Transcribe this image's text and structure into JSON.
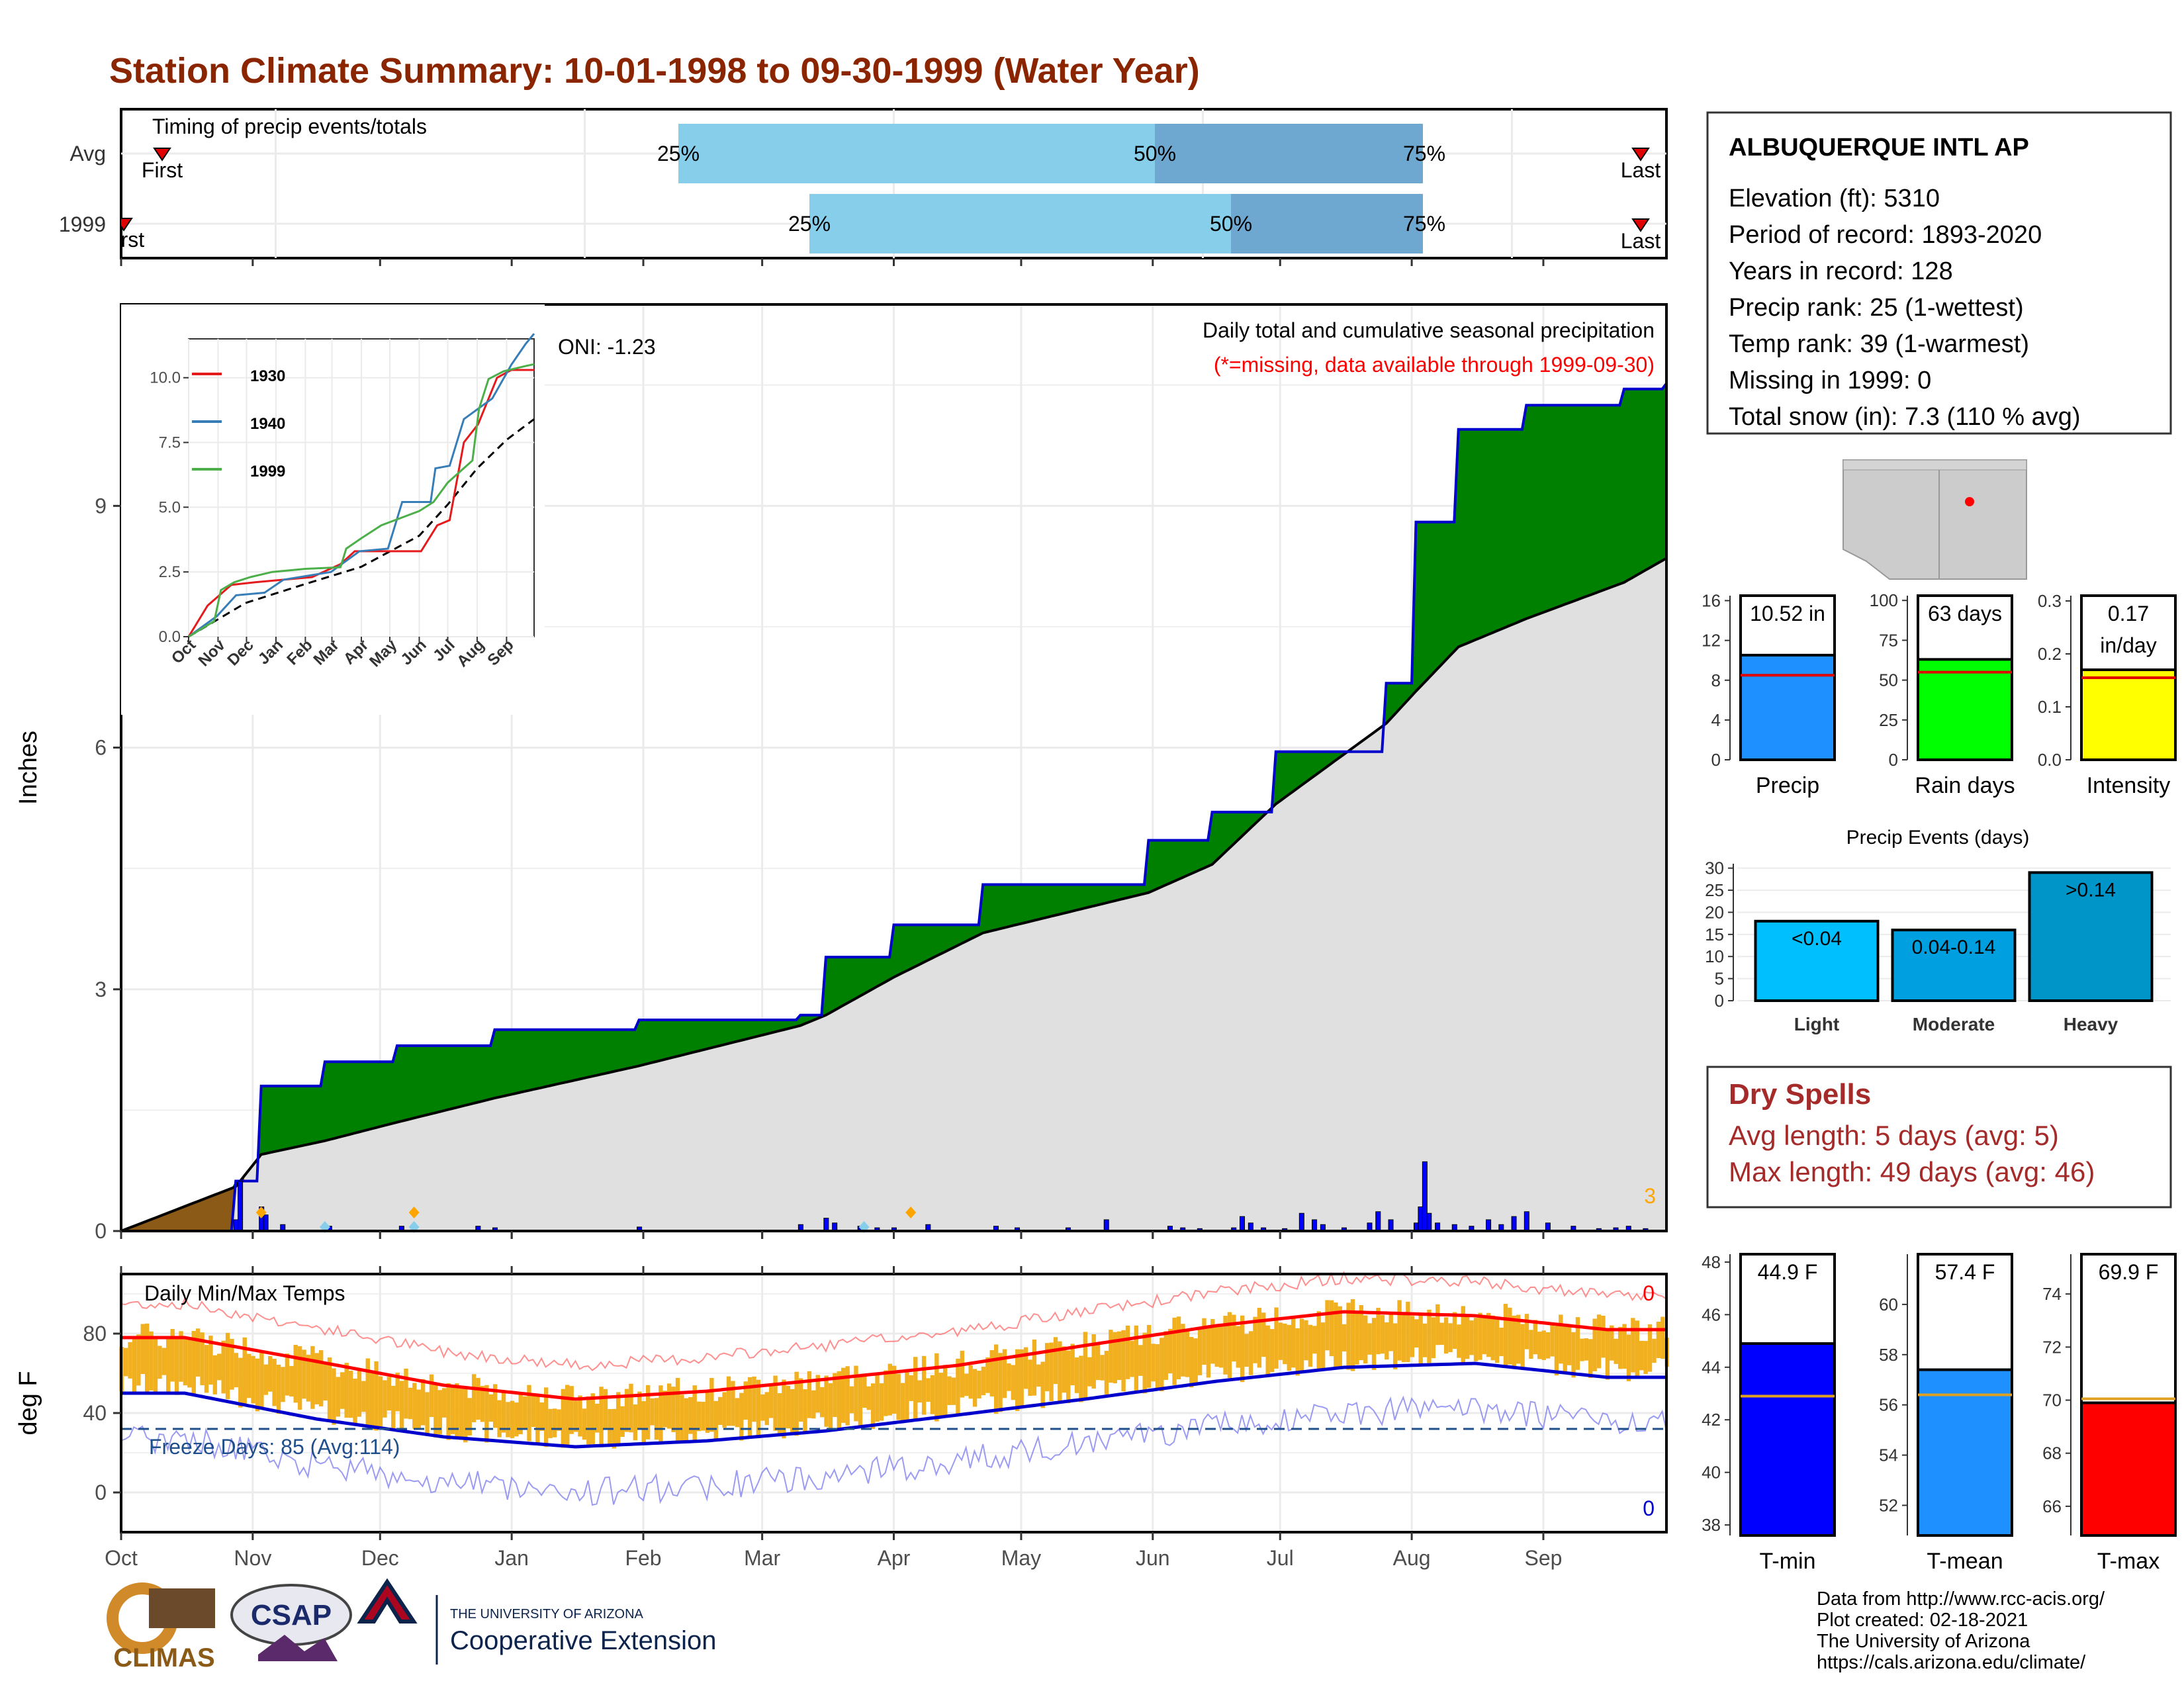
{
  "title": "Station Climate Summary: 10-01-1998 to 09-30-1999 (Water Year)",
  "colors": {
    "title": "#8b2500",
    "cum_precip_fill": "#008000",
    "cum_precip_line": "#0000cc",
    "avg_cum_fill": "#e0e0e0",
    "daily_precip": "#0000ff",
    "temp_bar": "#f0b020",
    "avg_max": "#ff0000",
    "avg_min": "#0000cc",
    "freeze_line": "#1f4e8c",
    "dry_spell_text": "#a52a2a",
    "precip_bar": "#1e90ff",
    "rain_days_bar": "#00ff00",
    "intensity_bar": "#ffff00",
    "event_light": "#00bfff",
    "event_moderate": "#00a0e0",
    "event_heavy": "#0095c8",
    "tmin_bar": "#0000ff",
    "tmean_bar": "#1e90ff",
    "tmax_bar": "#ff0000"
  },
  "timing": {
    "title": "Timing of precip events/totals",
    "rows": [
      "Avg",
      "1999"
    ],
    "avg": {
      "first_label": "First",
      "last_label": "Last",
      "p25": "25%",
      "p50": "50%",
      "p75": "75%"
    },
    "y1999": {
      "first_label": "First",
      "last_label": "Last",
      "p25": "25%",
      "p50": "50%",
      "p75": "75%"
    }
  },
  "precip_panel": {
    "ylabel": "Inches",
    "header": "Daily total and cumulative seasonal precipitation",
    "missing_note": "(*=missing, data available through 1999-09-30)",
    "oni": "ONI: -1.23",
    "corner_count": "3",
    "y_ticks": [
      "0",
      "3",
      "6",
      "9"
    ]
  },
  "inset": {
    "y_ticks": [
      "0.0",
      "2.5",
      "5.0",
      "7.5",
      "10.0"
    ],
    "x_ticks": [
      "Oct",
      "Nov",
      "Dec",
      "Jan",
      "Feb",
      "Mar",
      "Apr",
      "May",
      "Jun",
      "Jul",
      "Aug",
      "Sep"
    ],
    "legend": [
      "1930",
      "1940",
      "1999"
    ]
  },
  "temp_panel": {
    "ylabel": "deg F",
    "title": "Daily Min/Max Temps",
    "freeze": "Freeze Days: 85 (Avg:114)",
    "count_top": "0",
    "count_bottom": "0",
    "y_ticks": [
      "0",
      "40",
      "80"
    ]
  },
  "x_months": [
    "Oct",
    "Nov",
    "Dec",
    "Jan",
    "Feb",
    "Mar",
    "Apr",
    "May",
    "Jun",
    "Jul",
    "Aug",
    "Sep"
  ],
  "station": {
    "name": "ALBUQUERQUE INTL AP",
    "lines": [
      "Elevation (ft): 5310",
      "Period of record: 1893-2020",
      "Years in record: 128",
      "Precip rank: 25 (1-wettest)",
      "Temp rank: 39 (1-warmest)",
      "Missing in 1999: 0",
      "Total snow (in): 7.3 (110 % avg)"
    ]
  },
  "mini_precip": {
    "precip": {
      "label": "10.52 in",
      "axis": "Precip",
      "ticks": [
        "0",
        "4",
        "8",
        "12",
        "16"
      ]
    },
    "rain_days": {
      "label": "63 days",
      "axis": "Rain days",
      "ticks": [
        "0",
        "25",
        "50",
        "75",
        "100"
      ]
    },
    "intensity": {
      "label1": "0.17",
      "label2": "in/day",
      "axis": "Intensity",
      "ticks": [
        "0.0",
        "0.1",
        "0.2",
        "0.3"
      ]
    }
  },
  "precip_events": {
    "title": "Precip Events (days)",
    "ticks": [
      "0",
      "5",
      "10",
      "15",
      "20",
      "25",
      "30"
    ],
    "bars": [
      {
        "label": "<0.04",
        "axis": "Light"
      },
      {
        "label": "0.04-0.14",
        "axis": "Moderate"
      },
      {
        "label": ">0.14",
        "axis": "Heavy"
      }
    ]
  },
  "dry_spells": {
    "title": "Dry Spells",
    "avg": "Avg length: 5 days (avg: 5)",
    "max": "Max length: 49 days (avg: 46)"
  },
  "temp_mini": {
    "tmin": {
      "label": "44.9 F",
      "axis": "T-min",
      "ticks": [
        "38",
        "40",
        "42",
        "44",
        "46",
        "48"
      ]
    },
    "tmean": {
      "label": "57.4 F",
      "axis": "T-mean",
      "ticks": [
        "52",
        "54",
        "56",
        "58",
        "60"
      ]
    },
    "tmax": {
      "label": "69.9 F",
      "axis": "T-max",
      "ticks": [
        "66",
        "68",
        "70",
        "72",
        "74"
      ]
    }
  },
  "footer": {
    "lines": [
      "Data from http://www.rcc-acis.org/",
      "Plot created: 02-18-2021",
      "The University of Arizona",
      "https://cals.arizona.edu/climate/"
    ],
    "climas": "CLIMAS",
    "csap": "CSAP",
    "ua_small": "THE UNIVERSITY OF ARIZONA",
    "ua_big": "Cooperative Extension"
  },
  "chart_data": [
    {
      "type": "area",
      "title": "Daily total and cumulative seasonal precipitation",
      "ylabel": "Inches",
      "ylim": [
        0,
        11.5
      ],
      "x": [
        "1998-10-01",
        "1998-10-28",
        "1998-11-03",
        "1998-11-18",
        "1998-12-05",
        "1998-12-28",
        "1999-01-31",
        "1999-03-10",
        "1999-03-16",
        "1999-04-01",
        "1999-04-22",
        "1999-05-31",
        "1999-06-15",
        "1999-06-30",
        "1999-07-26",
        "1999-08-02",
        "1999-08-12",
        "1999-08-28",
        "1999-09-20",
        "1999-09-30"
      ],
      "series": [
        {
          "name": "1999",
          "values": [
            0.0,
            0.62,
            1.8,
            2.1,
            2.3,
            2.5,
            2.62,
            2.68,
            3.4,
            3.8,
            4.3,
            4.85,
            5.2,
            5.95,
            6.8,
            8.8,
            9.95,
            10.25,
            10.45,
            10.52
          ]
        },
        {
          "name": "Avg",
          "values": [
            0.0,
            0.55,
            0.95,
            1.12,
            1.35,
            1.65,
            2.05,
            2.55,
            2.68,
            3.15,
            3.7,
            4.2,
            4.55,
            5.3,
            6.3,
            6.7,
            7.25,
            7.6,
            8.05,
            8.35
          ]
        }
      ]
    },
    {
      "type": "line",
      "title": "Daily Min/Max Temps",
      "ylabel": "deg F",
      "ylim": [
        -20,
        110
      ],
      "x": [
        "Oct",
        "Nov",
        "Dec",
        "Jan",
        "Feb",
        "Mar",
        "Apr",
        "May",
        "Jun",
        "Jul",
        "Aug",
        "Sep"
      ],
      "series": [
        {
          "name": "Avg max",
          "values": [
            78,
            66,
            54,
            47,
            51,
            57,
            64,
            74,
            84,
            91,
            89,
            82
          ]
        },
        {
          "name": "Avg min",
          "values": [
            50,
            37,
            28,
            23,
            26,
            31,
            39,
            47,
            56,
            63,
            65,
            58
          ]
        }
      ]
    }
  ]
}
